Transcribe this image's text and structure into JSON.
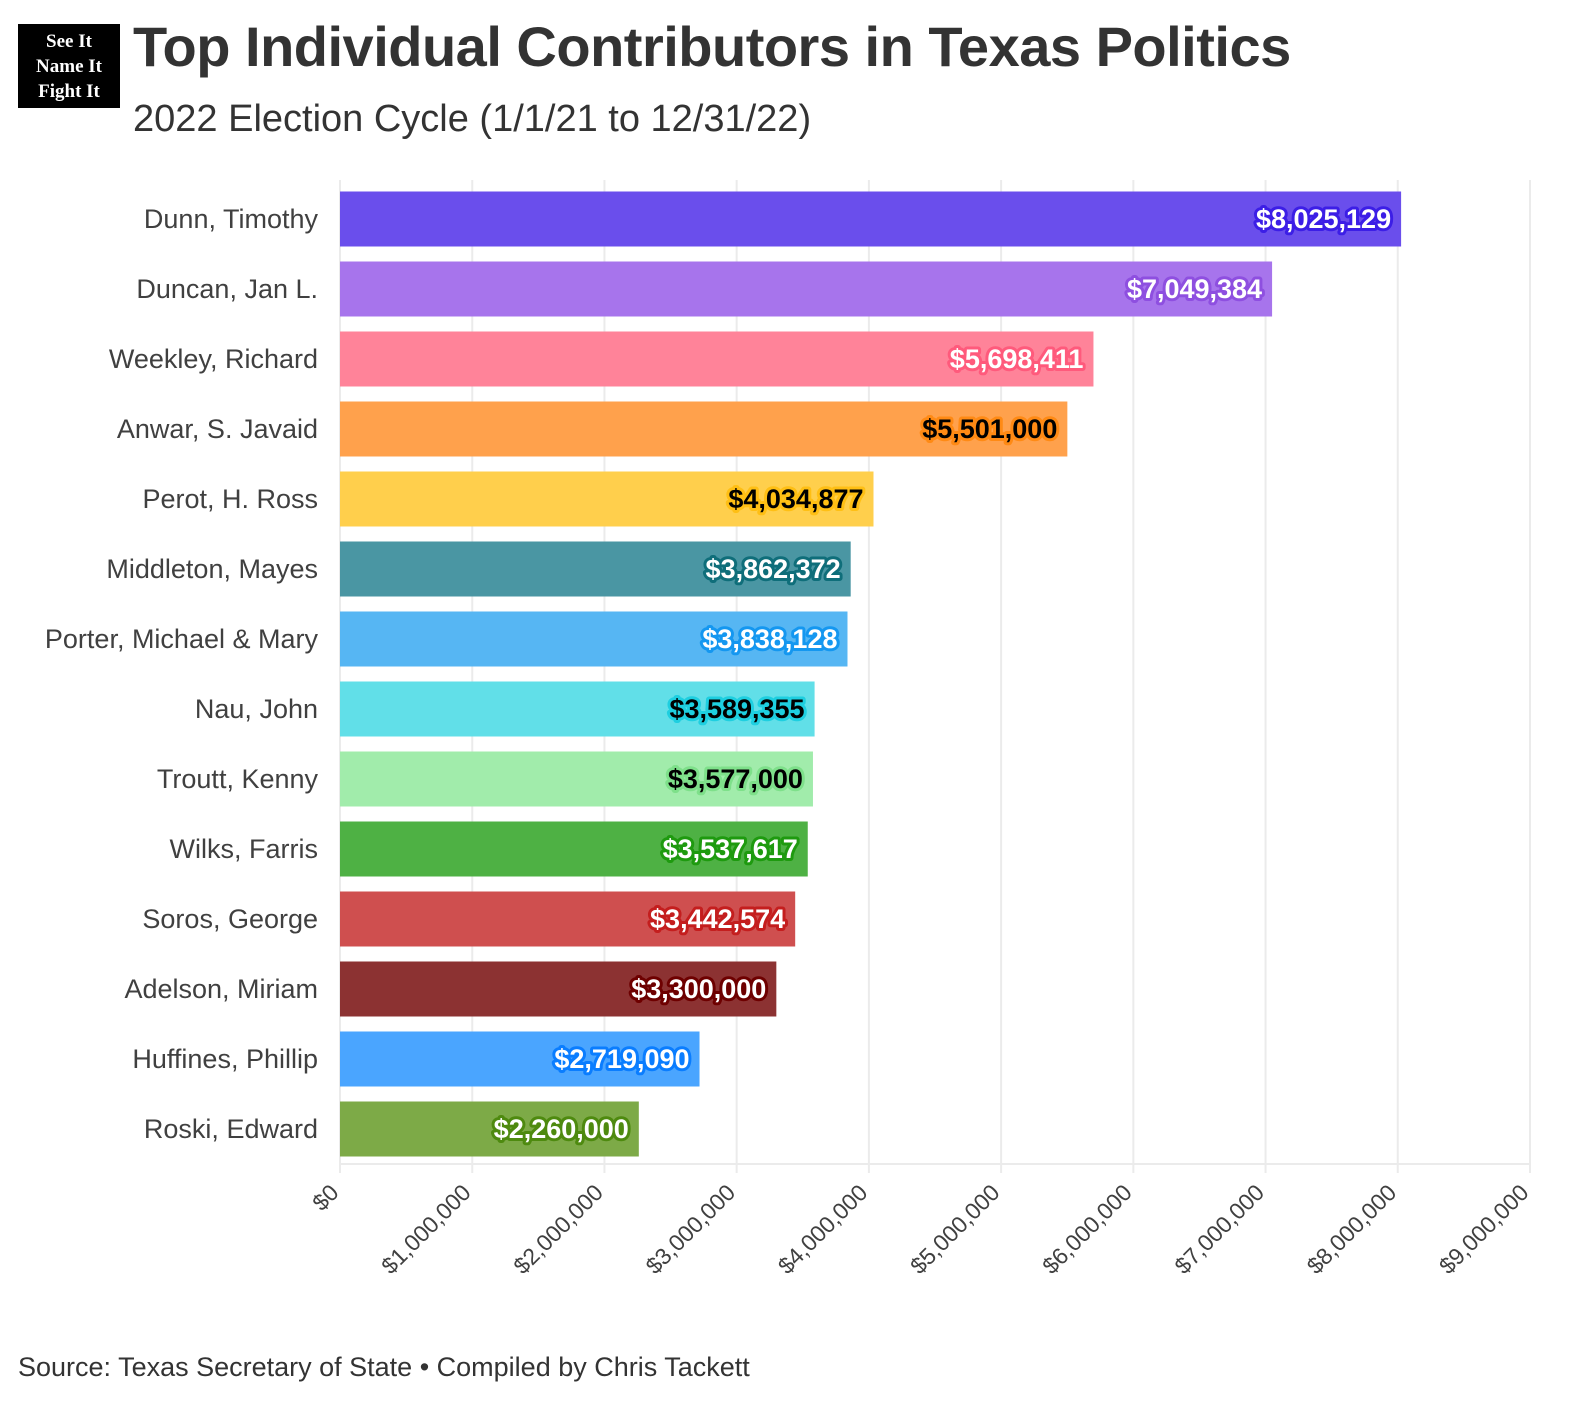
{
  "logo": {
    "lines": [
      "See It",
      "Name It",
      "Fight It"
    ]
  },
  "header": {
    "title": "Top Individual Contributors in Texas Politics",
    "subtitle": "2022 Election Cycle (1/1/21 to 12/31/22)"
  },
  "footer": {
    "source": "Source: Texas Secretary of State • Compiled by Chris Tackett"
  },
  "chart_data": {
    "type": "bar",
    "orientation": "horizontal",
    "title": "Top Individual Contributors in Texas Politics",
    "subtitle": "2022 Election Cycle (1/1/21 to 12/31/22)",
    "xlabel": "",
    "ylabel": "",
    "xlim": [
      0,
      9000000
    ],
    "grid": true,
    "legend": "none",
    "categories": [
      "Dunn, Timothy",
      "Duncan, Jan L.",
      "Weekley, Richard",
      "Anwar, S. Javaid",
      "Perot, H. Ross",
      "Middleton, Mayes",
      "Porter, Michael & Mary",
      "Nau, John",
      "Troutt, Kenny",
      "Wilks, Farris",
      "Soros, George",
      "Adelson, Miriam",
      "Huffines, Phillip",
      "Roski, Edward"
    ],
    "values": [
      8025129,
      7049384,
      5698411,
      5501000,
      4034877,
      3862372,
      3838128,
      3589355,
      3577000,
      3537617,
      3442574,
      3300000,
      2719090,
      2260000
    ],
    "value_labels": [
      "$8,025,129",
      "$7,049,384",
      "$5,698,411",
      "$5,501,000",
      "$4,034,877",
      "$3,862,372",
      "$3,838,128",
      "$3,589,355",
      "$3,577,000",
      "$3,537,617",
      "$3,442,574",
      "$3,300,000",
      "$2,719,090",
      "$2,260,000"
    ],
    "colors": [
      "#6a4eec",
      "#a774ec",
      "#ff8399",
      "#ffa14c",
      "#ffcf4c",
      "#4a96a3",
      "#56b6f3",
      "#61dfe8",
      "#a1ecab",
      "#4eb144",
      "#cf4f4f",
      "#8c3232",
      "#4aa5ff",
      "#7daa47"
    ],
    "label_text_colors": [
      "#ffffff",
      "#ffffff",
      "#ffffff",
      "#000000",
      "#000000",
      "#ffffff",
      "#ffffff",
      "#000000",
      "#000000",
      "#ffffff",
      "#ffffff",
      "#ffffff",
      "#ffffff",
      "#ffffff"
    ],
    "label_halo_colors": [
      "#3c1ee6",
      "#8e4fe0",
      "#ff5a7c",
      "#ff8a14",
      "#ffbf14",
      "#0f6e7a",
      "#1497f0",
      "#1ecfe0",
      "#7ee08a",
      "#1e9a0f",
      "#c41e1e",
      "#6e0000",
      "#0a7dff",
      "#4e8a0f"
    ],
    "x_ticks": [
      0,
      1000000,
      2000000,
      3000000,
      4000000,
      5000000,
      6000000,
      7000000,
      8000000,
      9000000
    ],
    "x_tick_labels": [
      "$0",
      "$1,000,000",
      "$2,000,000",
      "$3,000,000",
      "$4,000,000",
      "$5,000,000",
      "$6,000,000",
      "$7,000,000",
      "$8,000,000",
      "$9,000,000"
    ]
  }
}
